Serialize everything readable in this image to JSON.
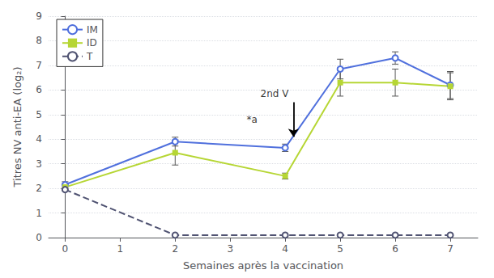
{
  "chart_data": {
    "type": "line",
    "x": [
      0,
      2,
      4,
      5,
      6,
      7
    ],
    "series": [
      {
        "name": "IM",
        "values": [
          2.15,
          3.9,
          3.65,
          6.85,
          7.3,
          6.2
        ],
        "errors": [
          0.12,
          0.18,
          0.15,
          0.4,
          0.25,
          0.55
        ],
        "marker": "open circle",
        "line_style": "solid"
      },
      {
        "name": "ID",
        "values": [
          2.05,
          3.45,
          2.5,
          6.3,
          6.3,
          6.15
        ],
        "errors": [
          0.12,
          0.5,
          0.12,
          0.55,
          0.55,
          0.55
        ],
        "marker": "square",
        "line_style": "solid"
      },
      {
        "name": "T",
        "values": [
          1.95,
          0.1,
          0.1,
          0.1,
          0.1,
          0.1
        ],
        "errors": [
          0.0,
          0.0,
          0.0,
          0.0,
          0.0,
          0.0
        ],
        "marker": "open circle",
        "line_style": "dashed"
      }
    ],
    "xlabel": "Semaines après la vaccination",
    "ylabel": "Titres NV anti-EA (log₂)",
    "xlim": [
      -0.3,
      7.5
    ],
    "xticks": [
      0,
      1,
      2,
      3,
      4,
      5,
      6,
      7
    ],
    "ylim": [
      0,
      9
    ],
    "yticks": [
      0,
      1,
      2,
      3,
      4,
      5,
      6,
      7,
      8,
      9
    ],
    "grid": true,
    "legend": "upper left",
    "annotations": [
      {
        "text": "2nd V",
        "x": 3.55,
        "y": 5.65
      },
      {
        "text": "*a",
        "x": 3.3,
        "y": 4.6
      }
    ],
    "arrow": {
      "x": 4.15,
      "from": 5.5,
      "to": 4.1
    }
  }
}
